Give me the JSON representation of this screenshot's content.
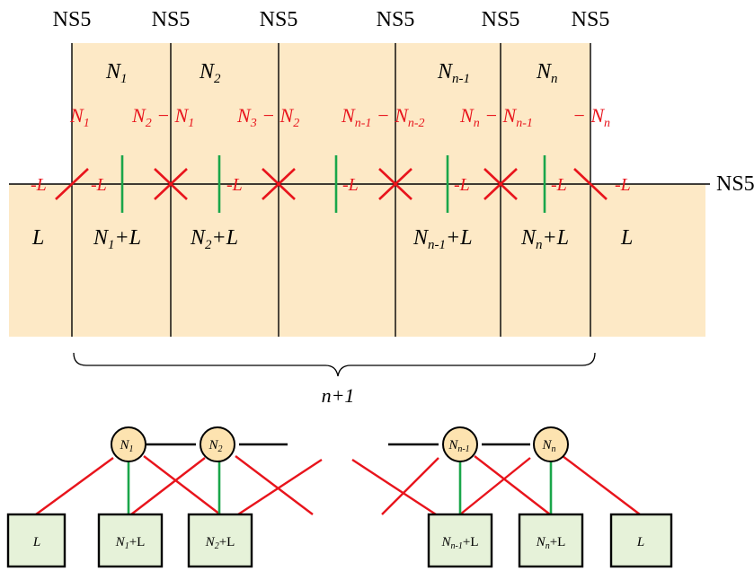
{
  "diagram": {
    "ns5_labels": [
      "NS5",
      "NS5",
      "NS5",
      "NS5",
      "NS5",
      "NS5"
    ],
    "ns5_prime_label": "NS5′",
    "upper_region_labels": [
      {
        "main": "N",
        "sub": "1"
      },
      {
        "main": "N",
        "sub": "2"
      },
      {
        "main": "N",
        "sub": "n-1"
      },
      {
        "main": "N",
        "sub": "n"
      }
    ],
    "lower_region_labels": [
      {
        "main": "L",
        "sub": "",
        "tail": ""
      },
      {
        "main": "N",
        "sub": "1",
        "tail": "+L"
      },
      {
        "main": "N",
        "sub": "2",
        "tail": "+L"
      },
      {
        "main": "N",
        "sub": "n-1",
        "tail": "+L"
      },
      {
        "main": "N",
        "sub": "n",
        "tail": "+L"
      },
      {
        "main": "L",
        "sub": "",
        "tail": ""
      }
    ],
    "red_labels": [
      {
        "main": "N",
        "sub": "1",
        "tail": ""
      },
      {
        "main": "N",
        "sub": "2",
        "tail": " − N",
        "sub2": "1"
      },
      {
        "main": "N",
        "sub": "3",
        "tail": " − N",
        "sub2": "2"
      },
      {
        "main": "N",
        "sub": "n-1",
        "tail": " − N",
        "sub2": "n-2"
      },
      {
        "main": "N",
        "sub": "n",
        "tail": " − N",
        "sub2": "n-1"
      },
      {
        "main": "− N",
        "sub": "n",
        "tail": ""
      }
    ],
    "minus_l_labels": [
      "-L",
      "-L",
      "-L",
      "-L",
      "-L",
      "-L",
      "-L"
    ],
    "brace_label": "n+1",
    "quiver_nodes": [
      {
        "main": "N",
        "sub": "1"
      },
      {
        "main": "N",
        "sub": "2"
      },
      {
        "main": "N",
        "sub": "n-1"
      },
      {
        "main": "N",
        "sub": "n"
      }
    ],
    "quiver_boxes": [
      {
        "main": "L",
        "sub": "",
        "tail": ""
      },
      {
        "main": "N",
        "sub": "1",
        "tail": "+L"
      },
      {
        "main": "N",
        "sub": "2",
        "tail": "+L"
      },
      {
        "main": "N",
        "sub": "n-1",
        "tail": "+L"
      },
      {
        "main": "N",
        "sub": "n",
        "tail": "+L"
      },
      {
        "main": "L",
        "sub": "",
        "tail": ""
      }
    ],
    "colors": {
      "shade": "#fde9c6",
      "red": "#e8141c",
      "green": "#1aa64a",
      "box_fill": "#e6f2d9",
      "node_fill": "#fde3b0",
      "black": "#000000"
    }
  }
}
